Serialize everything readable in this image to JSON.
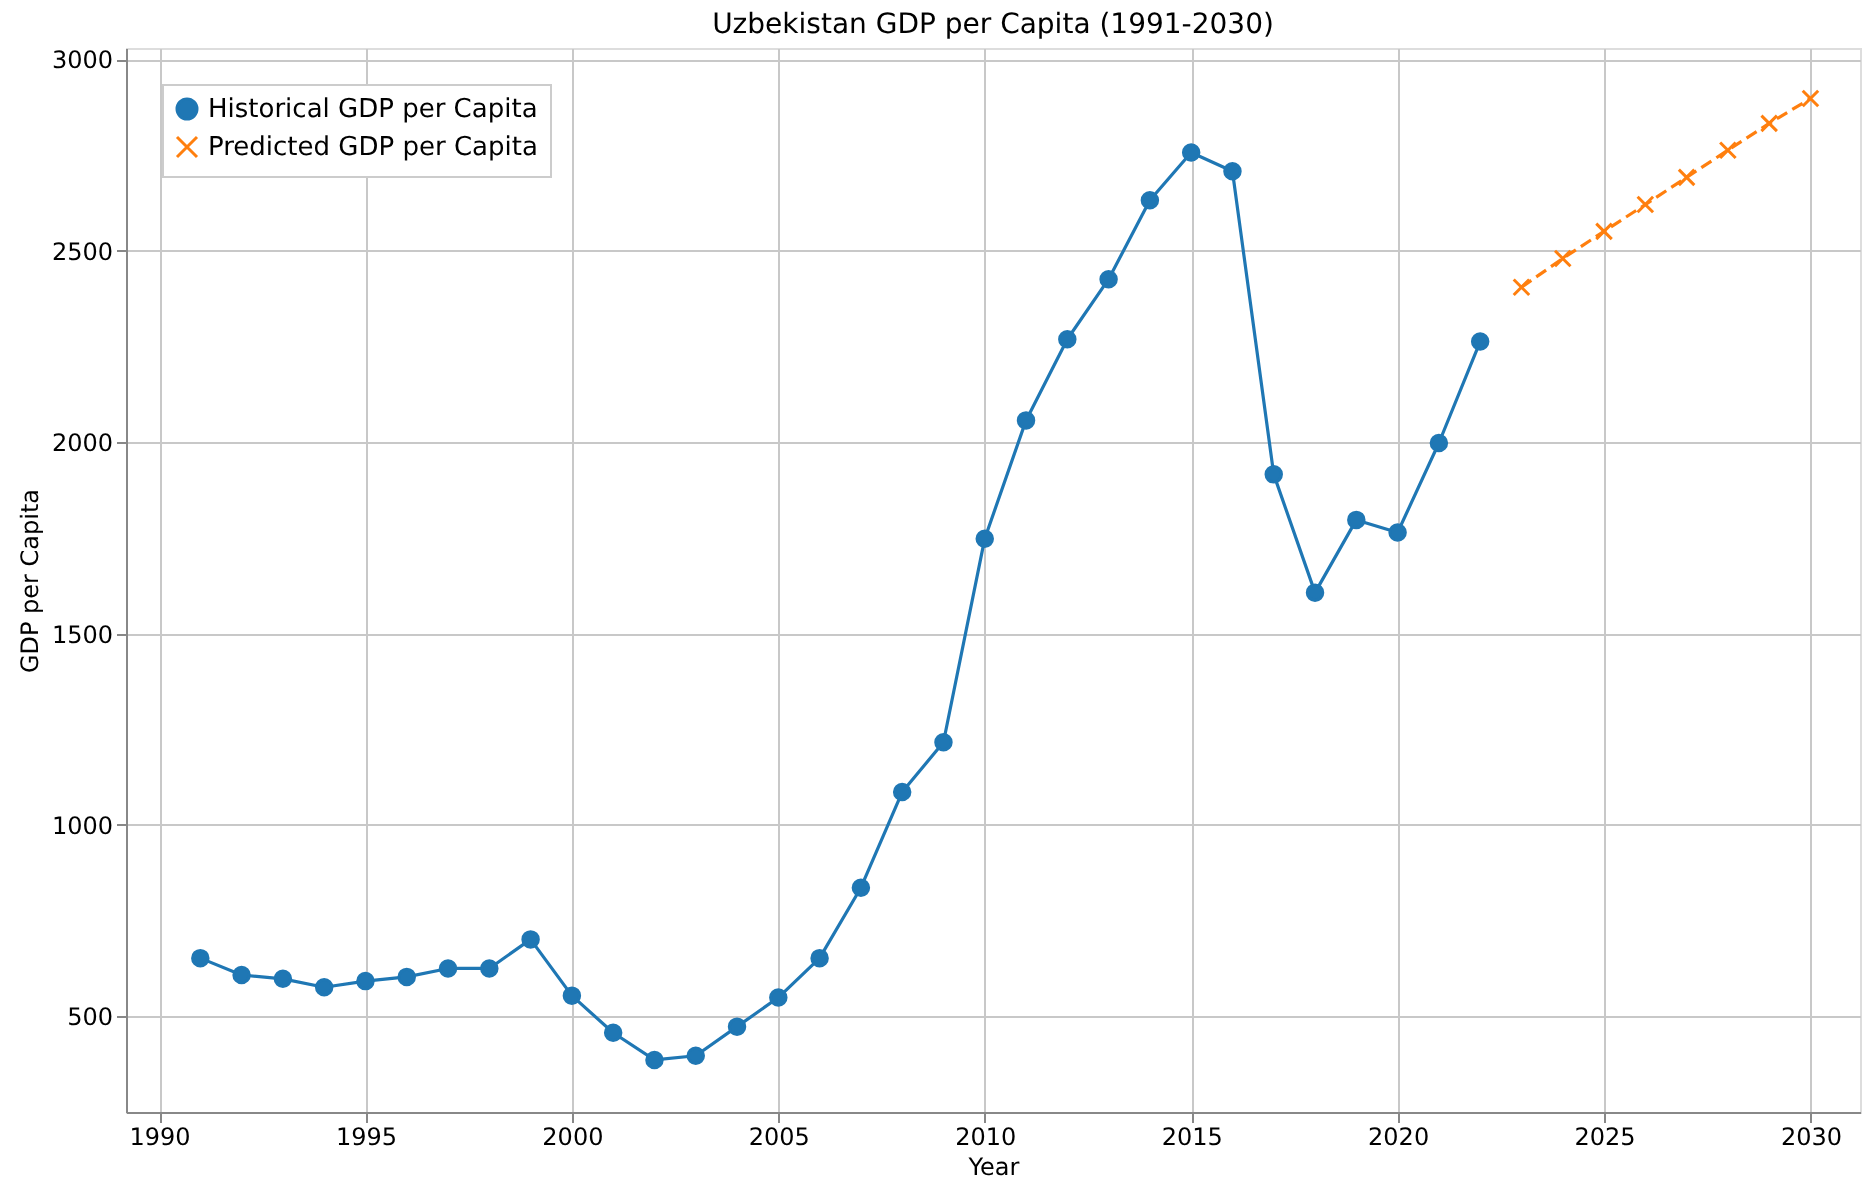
{
  "chart_data": {
    "type": "line",
    "title": "Uzbekistan GDP per Capita (1991-2030)",
    "xlabel": "Year",
    "ylabel": "GDP per Capita",
    "series": [
      {
        "name": "Historical GDP per Capita",
        "color": "#1f77b4",
        "marker": "circle",
        "line_style": "solid",
        "x": [
          1991,
          1992,
          1993,
          1994,
          1995,
          1996,
          1997,
          1998,
          1999,
          2000,
          2001,
          2002,
          2003,
          2004,
          2005,
          2006,
          2007,
          2008,
          2009,
          2010,
          2011,
          2012,
          2013,
          2014,
          2015,
          2016,
          2017,
          2018,
          2019,
          2020,
          2021,
          2022
        ],
        "values": [
          652,
          608,
          598,
          576,
          592,
          603,
          625,
          625,
          701,
          554,
          457,
          386,
          397,
          473,
          549,
          652,
          836,
          1086,
          1216,
          1748,
          2057,
          2269,
          2426,
          2632,
          2757,
          2708,
          1916,
          1607,
          1797,
          1764,
          1998,
          2263
        ]
      },
      {
        "name": "Predicted GDP per Capita",
        "color": "#ff7f0e",
        "marker": "cross",
        "line_style": "dashed",
        "x": [
          2023,
          2024,
          2025,
          2026,
          2027,
          2028,
          2029,
          2030
        ],
        "values": [
          2405,
          2480,
          2551,
          2621,
          2692,
          2763,
          2833,
          2898
        ]
      }
    ],
    "xlim": [
      1989.2,
      2031.2
    ],
    "xticks": [
      1990,
      1995,
      2000,
      2005,
      2010,
      2015,
      2020,
      2025,
      2030
    ],
    "ylim": [
      250,
      3030
    ],
    "yticks": [
      500,
      1000,
      1500,
      2000,
      2500,
      3000
    ],
    "grid": true,
    "legend": "top left"
  }
}
